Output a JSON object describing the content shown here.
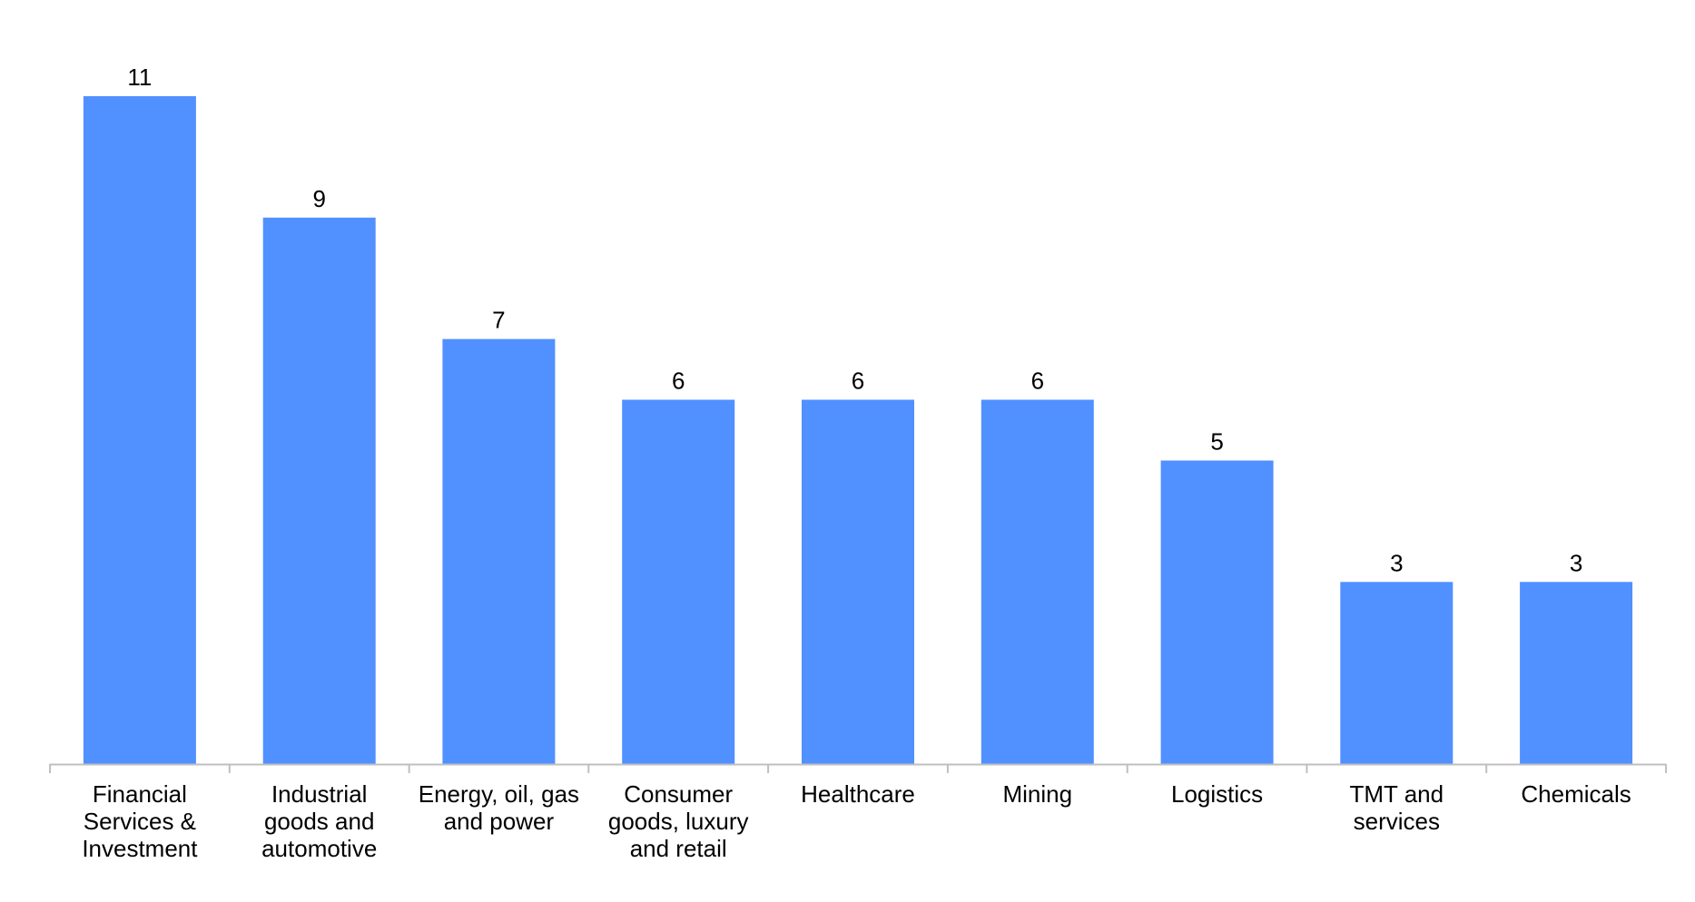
{
  "chart_data": {
    "type": "bar",
    "title": "",
    "xlabel": "",
    "ylabel": "",
    "ylim": [
      0,
      11
    ],
    "grid": false,
    "legend": "none",
    "bar_color": "#5190FF",
    "axis_color": "#BFBFBF",
    "categories": [
      [
        "Financial",
        "Services &",
        "Investment"
      ],
      [
        "Industrial",
        "goods and",
        "automotive"
      ],
      [
        "Energy, oil, gas",
        "and power"
      ],
      [
        "Consumer",
        "goods, luxury",
        "and retail"
      ],
      [
        "Healthcare"
      ],
      [
        "Mining"
      ],
      [
        "Logistics"
      ],
      [
        "TMT and",
        "services"
      ],
      [
        "Chemicals"
      ]
    ],
    "values": [
      11,
      9,
      7,
      6,
      6,
      6,
      5,
      3,
      3
    ]
  }
}
